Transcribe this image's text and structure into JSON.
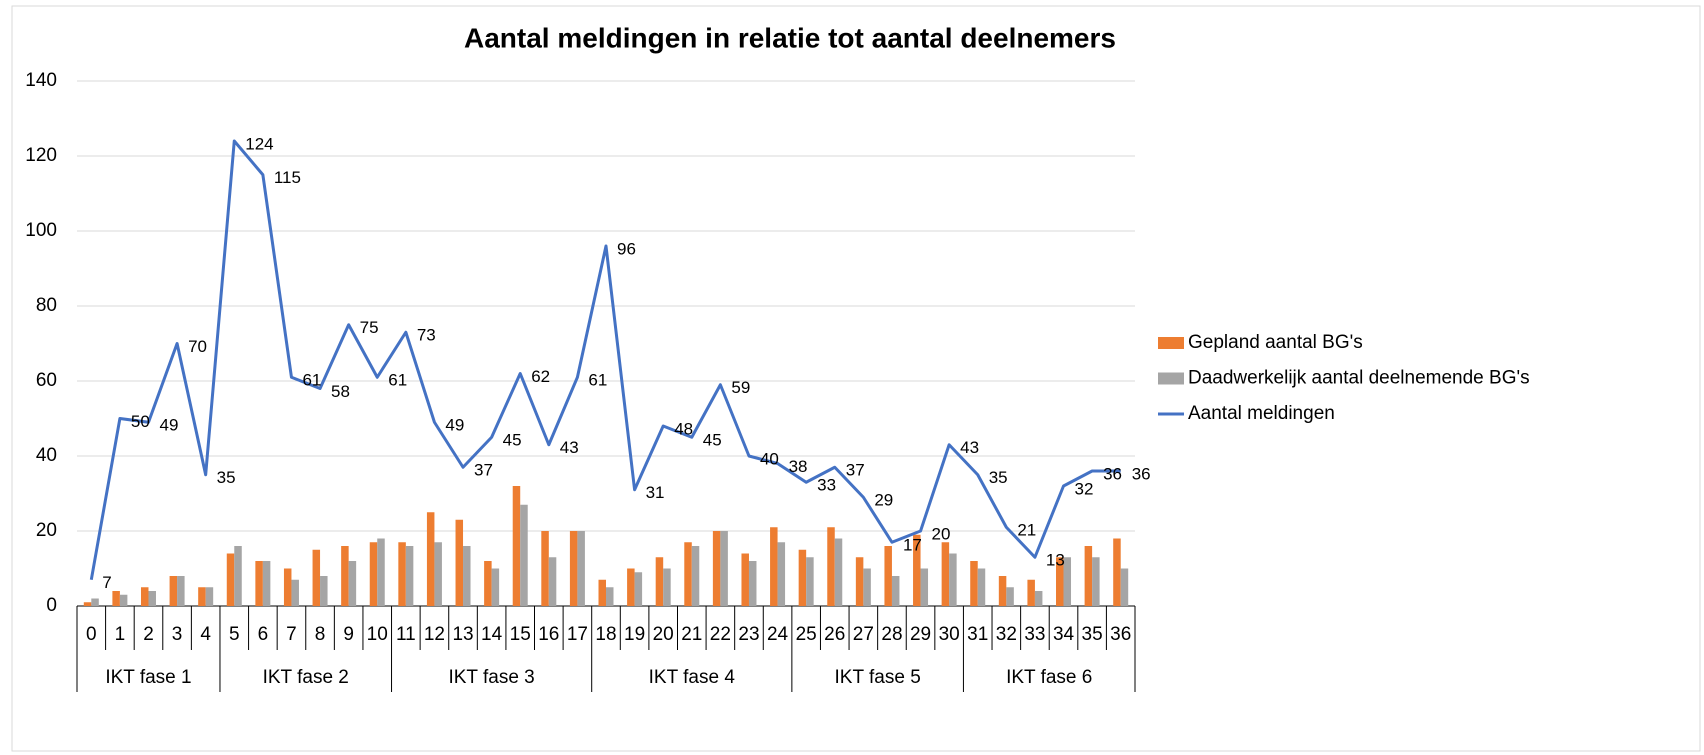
{
  "chart_data": {
    "type": "bar-line",
    "title": "Aantal meldingen in relatie tot aantal deelnemers",
    "categories": [
      "0",
      "1",
      "2",
      "3",
      "4",
      "5",
      "6",
      "7",
      "8",
      "9",
      "10",
      "11",
      "12",
      "13",
      "14",
      "15",
      "16",
      "17",
      "18",
      "19",
      "20",
      "21",
      "22",
      "23",
      "24",
      "25",
      "26",
      "27",
      "28",
      "29",
      "30",
      "31",
      "32",
      "33",
      "34",
      "35",
      "36"
    ],
    "group_labels": [
      "IKT fase 1",
      "IKT fase 2",
      "IKT fase 3",
      "IKT fase 4",
      "IKT fase 5",
      "IKT fase 6"
    ],
    "group_sizes": [
      5,
      6,
      7,
      7,
      6,
      6
    ],
    "series": [
      {
        "name": "Gepland aantal BG's",
        "color": "#ed7d31",
        "kind": "bar",
        "values": [
          1,
          4,
          5,
          8,
          5,
          14,
          12,
          10,
          15,
          16,
          17,
          17,
          25,
          23,
          12,
          32,
          20,
          20,
          7,
          10,
          13,
          17,
          20,
          14,
          21,
          15,
          21,
          13,
          16,
          19,
          17,
          12,
          8,
          7,
          13,
          16,
          18
        ]
      },
      {
        "name": "Daadwerkelijk aantal deelnemende BG's",
        "color": "#a5a5a5",
        "kind": "bar",
        "values": [
          2,
          3,
          4,
          8,
          5,
          16,
          12,
          7,
          8,
          12,
          18,
          16,
          17,
          16,
          10,
          27,
          13,
          20,
          5,
          9,
          10,
          16,
          20,
          12,
          17,
          13,
          18,
          10,
          8,
          10,
          14,
          10,
          5,
          4,
          13,
          13,
          10
        ]
      },
      {
        "name": "Aantal meldingen",
        "color": "#4472c4",
        "kind": "line",
        "data_labels": true,
        "values": [
          7,
          50,
          49,
          70,
          35,
          124,
          115,
          61,
          58,
          75,
          61,
          73,
          49,
          37,
          45,
          62,
          43,
          61,
          96,
          31,
          48,
          45,
          59,
          40,
          38,
          33,
          37,
          29,
          17,
          20,
          43,
          35,
          21,
          13,
          32,
          36,
          36
        ]
      }
    ],
    "ylim": [
      0,
      140
    ],
    "yticks": [
      0,
      20,
      40,
      60,
      80,
      100,
      120,
      140
    ],
    "grid": true,
    "legend": "right"
  }
}
